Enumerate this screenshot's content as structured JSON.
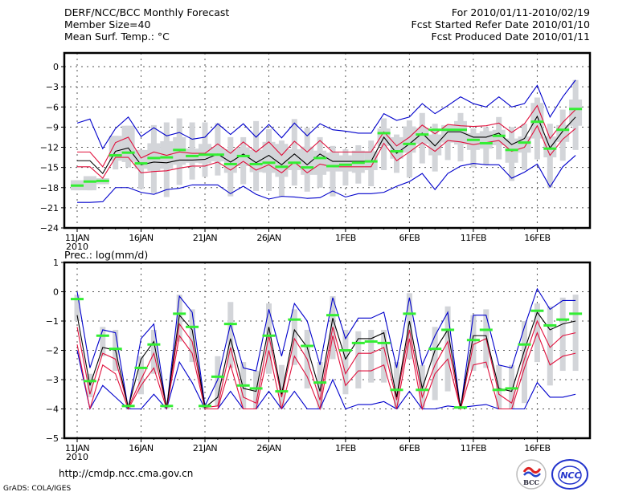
{
  "header": {
    "left": [
      "DERF/NCC/BCC Monthly Forecast",
      "Member Size=40",
      "Mean Surf. Temp.: °C"
    ],
    "right": [
      "For 2010/01/11-2010/02/19",
      "Fcst Started Refer Date 2010/01/10",
      "Fcst Produced Date 2010/01/11"
    ]
  },
  "footer": {
    "url": "http://cmdp.ncc.cma.gov.cn",
    "credit": "GrADS: COLA/IGES",
    "logos": [
      "BCC",
      "NCC"
    ]
  },
  "colors": {
    "envelope": "#0000cc",
    "quartile": "#e0103c",
    "median": "#000000",
    "box": "#d3d5d9",
    "observed": "#33ee33"
  },
  "chart_data": [
    {
      "type": "line",
      "title": "Mean Surf. Temp.: °C",
      "xlabel": "",
      "ylabel": "",
      "ylim": [
        -24,
        1.5
      ],
      "yticks": [
        0,
        -3,
        -6,
        -9,
        -12,
        -15,
        -18,
        -21,
        -24
      ],
      "x_start": "2010-01-11",
      "n_days": 40,
      "xtick_labels": [
        {
          "day": 0,
          "label": "11JAN",
          "sub": "2010"
        },
        {
          "day": 5,
          "label": "16JAN"
        },
        {
          "day": 10,
          "label": "21JAN"
        },
        {
          "day": 15,
          "label": "26JAN"
        },
        {
          "day": 21,
          "label": "1FEB"
        },
        {
          "day": 26,
          "label": "6FEB"
        },
        {
          "day": 31,
          "label": "11FEB"
        },
        {
          "day": 36,
          "label": "16FEB"
        }
      ],
      "grid": true,
      "series": [
        {
          "name": "max",
          "values": [
            -8.4,
            -7.8,
            -12.2,
            -9.2,
            -7.5,
            -10.4,
            -9.1,
            -10.3,
            -9.8,
            -10.8,
            -10.5,
            -8.5,
            -10.1,
            -8.5,
            -10.5,
            -8.6,
            -10.6,
            -8.4,
            -10.3,
            -8.5,
            -9.4,
            -9.6,
            -9.9,
            -9.9,
            -7.0,
            -8.0,
            -7.5,
            -5.5,
            -7.0,
            -5.8,
            -4.5,
            -5.5,
            -6.0,
            -4.5,
            -6.0,
            -5.5,
            -2.8,
            -7.5,
            -4.5,
            -2.0
          ]
        },
        {
          "name": "upper_quartile",
          "values": [
            -12.7,
            -12.7,
            -14.9,
            -11.3,
            -10.5,
            -13.6,
            -12.7,
            -13.2,
            -12.7,
            -12.9,
            -12.9,
            -11.5,
            -12.9,
            -11.2,
            -12.7,
            -11.2,
            -13.2,
            -11.1,
            -12.7,
            -11.0,
            -12.7,
            -12.7,
            -12.7,
            -12.7,
            -9.7,
            -11.8,
            -10.5,
            -8.7,
            -10.0,
            -8.6,
            -8.8,
            -8.9,
            -8.8,
            -8.4,
            -9.8,
            -8.5,
            -5.8,
            -10.7,
            -8.3,
            -6.4
          ]
        },
        {
          "name": "median",
          "values": [
            -14.0,
            -14.0,
            -15.9,
            -12.6,
            -12.1,
            -14.6,
            -14.2,
            -14.3,
            -13.9,
            -13.9,
            -13.8,
            -13.0,
            -14.2,
            -13.0,
            -14.3,
            -13.2,
            -14.6,
            -13.0,
            -14.6,
            -13.0,
            -14.1,
            -14.1,
            -14.1,
            -14.1,
            -10.5,
            -12.9,
            -11.5,
            -9.9,
            -11.8,
            -9.7,
            -9.7,
            -10.5,
            -10.5,
            -9.9,
            -11.6,
            -10.7,
            -7.4,
            -12.1,
            -9.6,
            -7.5
          ]
        },
        {
          "name": "lower_quartile",
          "values": [
            -14.9,
            -14.9,
            -16.6,
            -13.5,
            -13.5,
            -15.8,
            -15.6,
            -15.5,
            -15.1,
            -14.8,
            -14.8,
            -14.2,
            -15.4,
            -14.1,
            -15.4,
            -14.6,
            -15.8,
            -14.2,
            -15.8,
            -14.5,
            -14.9,
            -14.9,
            -14.9,
            -14.9,
            -11.4,
            -14.0,
            -12.7,
            -11.3,
            -12.6,
            -11.0,
            -11.2,
            -11.6,
            -11.3,
            -11.0,
            -12.6,
            -12.0,
            -8.8,
            -13.2,
            -10.8,
            -9.2
          ]
        },
        {
          "name": "min",
          "values": [
            -20.2,
            -20.2,
            -20.1,
            -18.0,
            -18.0,
            -18.7,
            -19.0,
            -18.3,
            -18.1,
            -17.6,
            -17.6,
            -17.6,
            -18.9,
            -17.8,
            -19.0,
            -19.7,
            -19.3,
            -19.4,
            -19.6,
            -19.5,
            -18.5,
            -19.4,
            -18.9,
            -18.9,
            -18.7,
            -17.8,
            -17.1,
            -15.9,
            -18.3,
            -15.9,
            -14.8,
            -14.4,
            -14.6,
            -14.6,
            -16.6,
            -15.7,
            -14.5,
            -17.9,
            -14.9,
            -13.2
          ]
        },
        {
          "name": "observed",
          "values": [
            -17.7,
            -17.1,
            -17.0,
            -13.2,
            -12.8,
            -14.4,
            -13.6,
            -13.5,
            -12.4,
            -13.3,
            -13.1,
            -13.1,
            -14.5,
            -13.3,
            -14.5,
            -14.3,
            -14.9,
            -14.3,
            -15.0,
            -13.6,
            -14.8,
            -14.6,
            -14.3,
            -14.1,
            -9.9,
            -12.6,
            -11.5,
            -10.1,
            -9.4,
            -9.4,
            -9.4,
            -10.9,
            -11.4,
            -10.3,
            -12.4,
            -11.3,
            -8.2,
            -12.2,
            -9.4,
            -6.3
          ]
        },
        {
          "name": "box_top",
          "values": [
            -16.9,
            -16.3,
            -16.6,
            -10.3,
            -8.8,
            -12.4,
            -11.4,
            -11.1,
            -10.5,
            -12.2,
            -11.5,
            -12.0,
            -12.3,
            -12.0,
            -12.4,
            -11.2,
            -11.5,
            -12.3,
            -11.9,
            -12.5,
            -12.8,
            -13.2,
            -12.5,
            -12.6,
            -9.2,
            -10.5,
            -8.9,
            -9.1,
            -10.1,
            -8.7,
            -8.1,
            -9.9,
            -9.6,
            -9.4,
            -10.7,
            -10.4,
            -5.4,
            -10.4,
            -8.7,
            -4.9
          ]
        },
        {
          "name": "box_bottom",
          "values": [
            -18.4,
            -18.4,
            -17.5,
            -14.0,
            -14.2,
            -15.2,
            -15.5,
            -15.2,
            -14.6,
            -14.3,
            -14.4,
            -14.1,
            -15.8,
            -14.8,
            -15.7,
            -15.8,
            -16.4,
            -15.4,
            -16.1,
            -16.1,
            -15.6,
            -15.6,
            -15.8,
            -15.4,
            -11.8,
            -13.7,
            -12.8,
            -11.5,
            -13.2,
            -11.3,
            -11.6,
            -12.4,
            -12.2,
            -11.7,
            -14.3,
            -12.8,
            -10.7,
            -13.5,
            -11.2,
            -8.8
          ]
        },
        {
          "name": "whisker_top",
          "values": [
            -16.9,
            -16.3,
            -16.6,
            -10.3,
            -8.8,
            -12.4,
            -8.7,
            -8.3,
            -7.7,
            -8.3,
            -8.3,
            -8.4,
            -10.5,
            -10.5,
            -8.1,
            -9.3,
            -11.0,
            -7.8,
            -9.1,
            -10.5,
            -11.8,
            -12.3,
            -11.7,
            -11.0,
            -7.7,
            -10.1,
            -8.0,
            -6.9,
            -8.5,
            -8.7,
            -6.9,
            -9.2,
            -9.0,
            -7.5,
            -9.0,
            -8.5,
            -4.6,
            -8.5,
            -6.4,
            -2.0
          ]
        },
        {
          "name": "whisker_bottom",
          "values": [
            -18.4,
            -18.4,
            -17.5,
            -15.3,
            -15.0,
            -18.2,
            -18.8,
            -19.4,
            -17.6,
            -16.8,
            -16.4,
            -16.2,
            -19.3,
            -17.5,
            -18.5,
            -18.5,
            -19.3,
            -17.7,
            -18.6,
            -18.0,
            -19.3,
            -17.7,
            -17.4,
            -17.8,
            -15.4,
            -15.8,
            -16.5,
            -14.4,
            -15.6,
            -13.9,
            -14.1,
            -15.0,
            -14.6,
            -13.8,
            -17.0,
            -15.4,
            -13.8,
            -18.0,
            -14.0,
            -12.4
          ]
        }
      ]
    },
    {
      "type": "line",
      "title": "Prec.: log(mm/d)",
      "xlabel": "",
      "ylabel": "",
      "ylim": [
        -5,
        1
      ],
      "yticks": [
        1,
        0,
        -1,
        -2,
        -3,
        -4,
        -5
      ],
      "x_start": "2010-01-11",
      "n_days": 40,
      "xtick_labels": [
        {
          "day": 0,
          "label": "11JAN",
          "sub": "2010"
        },
        {
          "day": 5,
          "label": "16JAN"
        },
        {
          "day": 10,
          "label": "21JAN"
        },
        {
          "day": 15,
          "label": "26JAN"
        },
        {
          "day": 21,
          "label": "1FEB"
        },
        {
          "day": 26,
          "label": "6FEB"
        },
        {
          "day": 31,
          "label": "11FEB"
        },
        {
          "day": 36,
          "label": "16FEB"
        }
      ],
      "grid": true,
      "series": [
        {
          "name": "max",
          "values": [
            0.0,
            -2.6,
            -1.3,
            -1.4,
            -4.0,
            -1.6,
            -1.1,
            -4.0,
            -0.15,
            -0.7,
            -3.9,
            -3.0,
            -1.1,
            -2.6,
            -2.7,
            -0.6,
            -2.2,
            -0.4,
            -1.0,
            -2.5,
            -0.2,
            -1.6,
            -0.9,
            -0.9,
            -0.7,
            -2.6,
            -0.2,
            -2.5,
            -1.5,
            -0.7,
            -4.0,
            -0.8,
            -0.8,
            -2.5,
            -2.6,
            -1.2,
            0.1,
            -0.6,
            -0.3,
            -0.3
          ]
        },
        {
          "name": "upper_quartile",
          "values": [
            -1.2,
            -3.5,
            -2.1,
            -2.3,
            -3.95,
            -3.0,
            -2.1,
            -3.95,
            -1.1,
            -1.7,
            -3.95,
            -3.9,
            -1.9,
            -3.6,
            -3.8,
            -1.5,
            -3.6,
            -1.6,
            -2.3,
            -3.7,
            -1.2,
            -2.8,
            -2.1,
            -2.1,
            -1.9,
            -3.7,
            -1.3,
            -3.6,
            -2.5,
            -1.7,
            -4.0,
            -1.8,
            -1.6,
            -3.5,
            -3.8,
            -2.3,
            -1.0,
            -1.9,
            -1.5,
            -1.4
          ]
        },
        {
          "name": "median",
          "values": [
            -0.8,
            -3.2,
            -1.9,
            -2.0,
            -3.95,
            -2.3,
            -1.7,
            -3.95,
            -0.8,
            -1.3,
            -3.95,
            -3.6,
            -1.6,
            -3.3,
            -3.4,
            -1.2,
            -3.5,
            -1.3,
            -1.9,
            -3.4,
            -0.9,
            -2.3,
            -1.6,
            -1.6,
            -1.4,
            -3.6,
            -1.0,
            -3.3,
            -2.0,
            -1.3,
            -3.95,
            -1.5,
            -1.5,
            -3.3,
            -3.4,
            -2.0,
            -0.7,
            -1.3,
            -1.1,
            -1.0
          ]
        },
        {
          "name": "lower_quartile",
          "values": [
            -1.8,
            -4.0,
            -2.5,
            -2.8,
            -4.0,
            -3.2,
            -2.6,
            -4.0,
            -1.5,
            -2.1,
            -4.0,
            -4.0,
            -2.5,
            -4.0,
            -4.0,
            -2.0,
            -4.0,
            -2.2,
            -2.9,
            -4.0,
            -1.5,
            -3.2,
            -2.7,
            -2.7,
            -2.5,
            -4.0,
            -1.6,
            -4.0,
            -2.8,
            -2.3,
            -4.0,
            -2.5,
            -2.4,
            -4.0,
            -4.0,
            -2.6,
            -1.4,
            -2.5,
            -2.2,
            -2.1
          ]
        },
        {
          "name": "min",
          "values": [
            -2.0,
            -4.0,
            -3.2,
            -3.6,
            -4.0,
            -4.0,
            -3.5,
            -4.0,
            -2.4,
            -3.1,
            -4.0,
            -4.0,
            -3.4,
            -4.0,
            -4.0,
            -3.4,
            -4.0,
            -3.4,
            -4.0,
            -4.0,
            -3.0,
            -4.0,
            -3.85,
            -3.85,
            -3.75,
            -4.0,
            -3.4,
            -4.0,
            -4.0,
            -3.9,
            -3.95,
            -3.9,
            -3.85,
            -4.0,
            -4.0,
            -4.0,
            -3.1,
            -3.6,
            -3.6,
            -3.5
          ]
        },
        {
          "name": "observed",
          "values": [
            -0.25,
            -3.05,
            -1.5,
            -1.95,
            -3.9,
            -2.6,
            -1.8,
            -3.9,
            -0.75,
            -1.2,
            -3.9,
            -2.9,
            -1.1,
            -3.2,
            -3.3,
            -1.5,
            -3.4,
            -0.95,
            -1.85,
            -3.1,
            -0.8,
            -2.0,
            -1.75,
            -1.7,
            -1.75,
            -3.35,
            -0.75,
            -3.35,
            -1.95,
            -1.3,
            -3.95,
            -1.65,
            -1.3,
            -3.35,
            -3.3,
            -1.8,
            -0.65,
            -1.15,
            -0.95,
            -0.75
          ]
        },
        {
          "name": "whisker_top",
          "values": [
            -0.1,
            -2.8,
            -1.2,
            -1.3,
            -3.9,
            -2.2,
            -1.3,
            -3.9,
            -0.1,
            -0.6,
            -3.9,
            -2.2,
            -0.35,
            -2.4,
            -2.7,
            -0.4,
            -2.5,
            -0.6,
            -1.3,
            -2.4,
            -0.15,
            -1.3,
            -1.35,
            -1.3,
            -1.3,
            -2.4,
            -0.05,
            -2.5,
            -1.2,
            -0.5,
            -3.9,
            -0.8,
            -0.6,
            -2.5,
            -2.5,
            -1.0,
            -0.4,
            -0.5,
            -0.2,
            -0.1
          ]
        },
        {
          "name": "whisker_bottom",
          "values": [
            -1.0,
            -3.6,
            -2.2,
            -2.7,
            -4.0,
            -3.5,
            -2.8,
            -4.0,
            -1.7,
            -2.4,
            -4.0,
            -3.9,
            -2.6,
            -4.0,
            -4.0,
            -2.8,
            -4.0,
            -2.5,
            -3.3,
            -4.0,
            -2.3,
            -3.5,
            -3.3,
            -3.1,
            -3.1,
            -4.0,
            -2.3,
            -4.0,
            -3.7,
            -3.4,
            -4.0,
            -2.7,
            -2.6,
            -4.0,
            -4.0,
            -3.8,
            -2.4,
            -3.2,
            -2.7,
            -2.7
          ]
        }
      ]
    }
  ]
}
